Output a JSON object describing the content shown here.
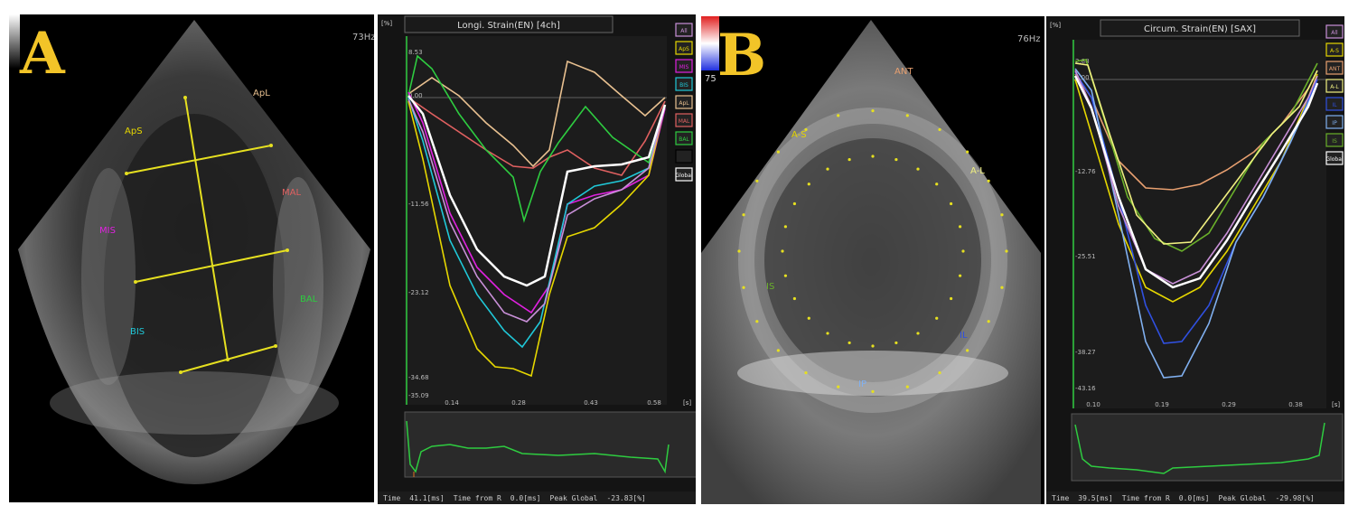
{
  "panel_a": {
    "letter": "A",
    "frame_rate": "73Hz",
    "segment_labels": [
      "ApL",
      "ApS",
      "MAL",
      "MIS",
      "BAL",
      "BIS"
    ],
    "graph": {
      "title": "Longi. Strain(EN) [4ch]",
      "y_unit": "[%]",
      "x_unit": "[s]",
      "y_ticks": [
        "8.53",
        "0.00",
        "-11.56",
        "-23.12",
        "-34.68",
        "-35.09"
      ],
      "x_ticks": [
        "0.14",
        "0.28",
        "0.43",
        "0.58"
      ],
      "y_top_label": "0.00",
      "legend": [
        {
          "label": "All",
          "color": "#c990d8"
        },
        {
          "label": "ApS",
          "color": "#e6d700"
        },
        {
          "label": "MIS",
          "color": "#e021e0"
        },
        {
          "label": "BIS",
          "color": "#20c8d8"
        },
        {
          "label": "ApL",
          "color": "#e8c090"
        },
        {
          "label": "MAL",
          "color": "#e06060"
        },
        {
          "label": "BAL",
          "color": "#2ecc40"
        },
        {
          "label": "",
          "color": "#000000"
        },
        {
          "label": "Global",
          "color": "#ffffff"
        }
      ],
      "status": {
        "time_label": "Time",
        "time_value": "41.1[ms]",
        "from_r_label": "Time from R",
        "from_r_value": "0.0[ms]",
        "peak_label": "Peak Global",
        "peak_value": "-23.83[%]"
      }
    }
  },
  "panel_b": {
    "letter": "B",
    "frame_rate": "76Hz",
    "depth": "75",
    "segment_labels": [
      "A-S",
      "A-L",
      "IS",
      "IL",
      "IP",
      "ANT"
    ],
    "graph": {
      "title": "Circum. Strain(EN) [SAX]",
      "y_unit": "[%]",
      "x_unit": "[s]",
      "y_ticks": [
        "2.88",
        "0.00",
        "-12.76",
        "-25.51",
        "-38.27",
        "-43.16"
      ],
      "x_ticks": [
        "0.10",
        "0.19",
        "0.29",
        "0.38"
      ],
      "legend": [
        {
          "label": "All",
          "color": "#c990d8"
        },
        {
          "label": "A-S",
          "color": "#e6d700"
        },
        {
          "label": "ANT",
          "color": "#e8a070"
        },
        {
          "label": "A-L",
          "color": "#f0f080"
        },
        {
          "label": "IL",
          "color": "#3050e0"
        },
        {
          "label": "IP",
          "color": "#80b0f0"
        },
        {
          "label": "IS",
          "color": "#6ab02a"
        },
        {
          "label": "Global",
          "color": "#ffffff"
        }
      ],
      "status": {
        "time_label": "Time",
        "time_value": "39.5[ms]",
        "from_r_label": "Time from R",
        "from_r_value": "0.0[ms]",
        "peak_label": "Peak Global",
        "peak_value": "-29.98[%]"
      }
    }
  }
}
